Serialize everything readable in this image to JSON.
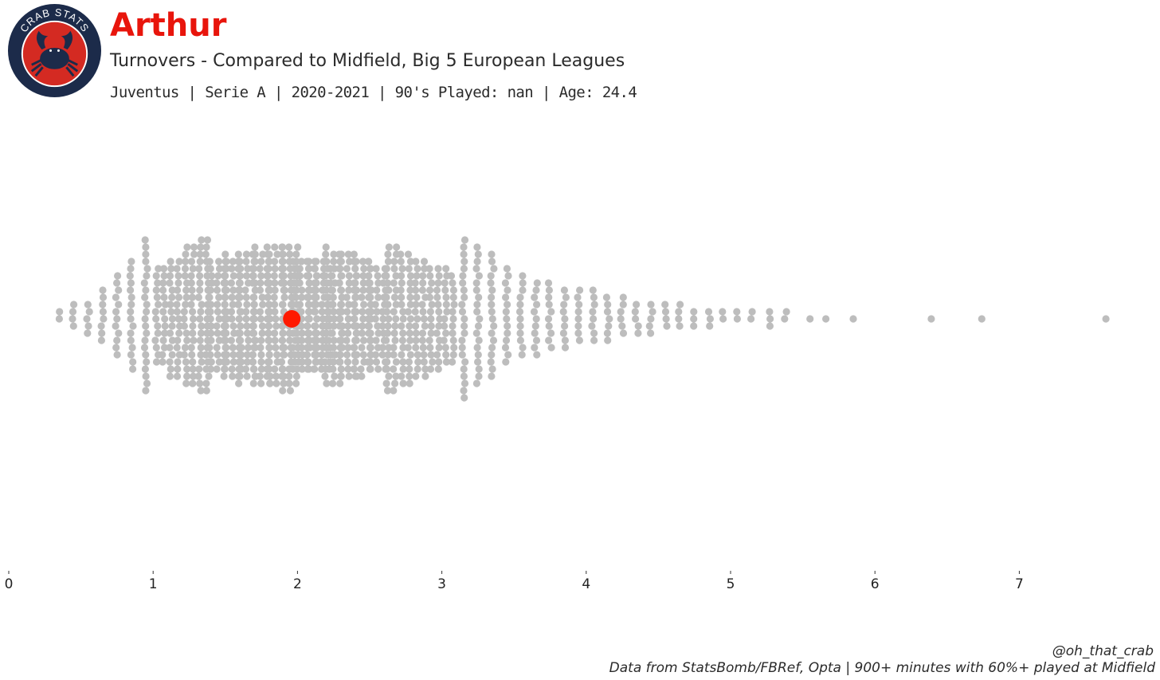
{
  "logo": {
    "text": "CRAB STATS",
    "colors": {
      "ring": "#1c2b4a",
      "inner": "#d42a22",
      "crab": "#1c2b4a",
      "text": "#ffffff"
    },
    "icon": "crab-icon"
  },
  "header": {
    "title": "Arthur",
    "subtitle": "Turnovers - Compared to Midfield, Big 5 European Leagues",
    "meta": "Juventus  | Serie A | 2020-2021 | 90's Played: nan | Age: 24.4"
  },
  "footer": {
    "handle": "@oh_that_crab",
    "source": "Data from StatsBomb/FBRef, Opta | 900+ minutes with 60%+ played at Midfield"
  },
  "chart_data": {
    "type": "scatter",
    "style": "beeswarm",
    "xlim": [
      0,
      7.7
    ],
    "x_ticks": [
      0,
      1,
      2,
      3,
      4,
      5,
      6,
      7
    ],
    "x_tick_labels": [
      "0",
      "1",
      "2",
      "3",
      "4",
      "5",
      "6",
      "7"
    ],
    "grid": false,
    "colors": {
      "population": "#bdbdbd",
      "highlight": "#ff1a00"
    },
    "highlight": {
      "x": 1.96
    },
    "outliers": [
      5.55,
      5.66,
      5.85,
      6.39,
      6.74,
      7.6
    ],
    "population_density": [
      {
        "x": 0.35,
        "count": 2
      },
      {
        "x": 0.45,
        "count": 4
      },
      {
        "x": 0.55,
        "count": 5
      },
      {
        "x": 0.65,
        "count": 8
      },
      {
        "x": 0.75,
        "count": 12
      },
      {
        "x": 0.85,
        "count": 16
      },
      {
        "x": 0.95,
        "count": 22
      },
      {
        "x": 1.05,
        "count": 28
      },
      {
        "x": 1.15,
        "count": 34
      },
      {
        "x": 1.25,
        "count": 40
      },
      {
        "x": 1.35,
        "count": 44
      },
      {
        "x": 1.45,
        "count": 48
      },
      {
        "x": 1.55,
        "count": 52
      },
      {
        "x": 1.65,
        "count": 55
      },
      {
        "x": 1.75,
        "count": 58
      },
      {
        "x": 1.85,
        "count": 60
      },
      {
        "x": 1.95,
        "count": 62
      },
      {
        "x": 2.05,
        "count": 64
      },
      {
        "x": 2.15,
        "count": 63
      },
      {
        "x": 2.25,
        "count": 58
      },
      {
        "x": 2.35,
        "count": 54
      },
      {
        "x": 2.45,
        "count": 50
      },
      {
        "x": 2.55,
        "count": 46
      },
      {
        "x": 2.65,
        "count": 42
      },
      {
        "x": 2.75,
        "count": 38
      },
      {
        "x": 2.85,
        "count": 34
      },
      {
        "x": 2.95,
        "count": 30
      },
      {
        "x": 3.05,
        "count": 27
      },
      {
        "x": 3.15,
        "count": 23
      },
      {
        "x": 3.25,
        "count": 20
      },
      {
        "x": 3.35,
        "count": 18
      },
      {
        "x": 3.45,
        "count": 14
      },
      {
        "x": 3.55,
        "count": 12
      },
      {
        "x": 3.65,
        "count": 11
      },
      {
        "x": 3.75,
        "count": 10
      },
      {
        "x": 3.85,
        "count": 9
      },
      {
        "x": 3.95,
        "count": 8
      },
      {
        "x": 4.05,
        "count": 8
      },
      {
        "x": 4.15,
        "count": 7
      },
      {
        "x": 4.25,
        "count": 6
      },
      {
        "x": 4.35,
        "count": 5
      },
      {
        "x": 4.45,
        "count": 5
      },
      {
        "x": 4.55,
        "count": 4
      },
      {
        "x": 4.65,
        "count": 4
      },
      {
        "x": 4.75,
        "count": 3
      },
      {
        "x": 4.85,
        "count": 3
      },
      {
        "x": 4.95,
        "count": 2
      },
      {
        "x": 5.05,
        "count": 2
      },
      {
        "x": 5.15,
        "count": 2
      },
      {
        "x": 5.27,
        "count": 3
      },
      {
        "x": 5.38,
        "count": 2
      }
    ]
  }
}
